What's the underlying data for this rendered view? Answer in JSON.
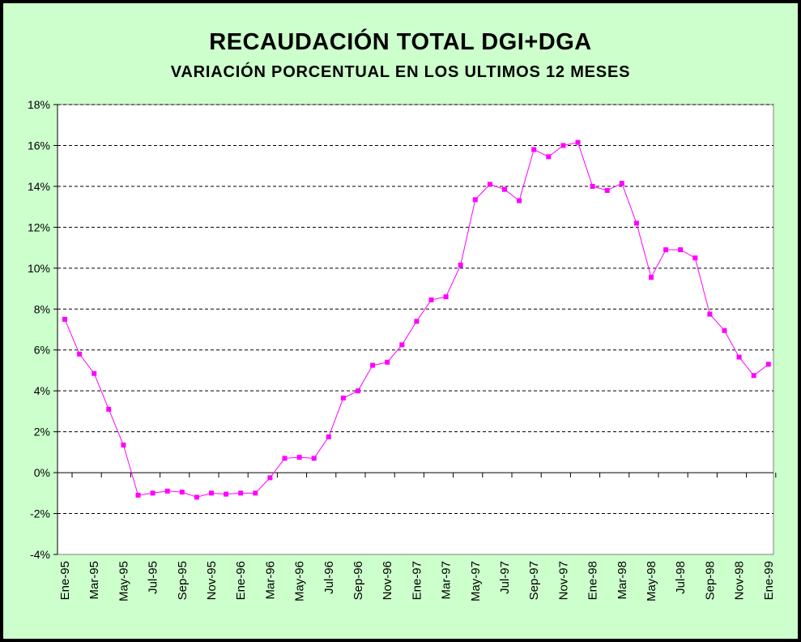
{
  "title": "RECAUDACIÓN TOTAL DGI+DGA",
  "subtitle": "VARIACIÓN PORCENTUAL EN LOS ULTIMOS 12 MESES",
  "colors": {
    "background": "#ccffcc",
    "plot_area": "#ffffff",
    "series": "#ff00ff",
    "grid": "#000000"
  },
  "chart_data": {
    "type": "line",
    "title": "RECAUDACIÓN TOTAL DGI+DGA",
    "subtitle": "VARIACIÓN PORCENTUAL EN LOS ULTIMOS 12 MESES",
    "xlabel": "",
    "ylabel": "",
    "ylim": [
      -4,
      18
    ],
    "yticks": [
      -4,
      -2,
      0,
      2,
      4,
      6,
      8,
      10,
      12,
      14,
      16,
      18
    ],
    "ytick_labels": [
      "-4%",
      "-2%",
      "0%",
      "2%",
      "4%",
      "6%",
      "8%",
      "10%",
      "12%",
      "14%",
      "16%",
      "18%"
    ],
    "grid": "horizontal dashed",
    "marker": "square",
    "x_tick_labels": [
      "Ene-95",
      "Mar-95",
      "May-95",
      "Jul-95",
      "Sep-95",
      "Nov-95",
      "Ene-96",
      "Mar-96",
      "May-96",
      "Jul-96",
      "Sep-96",
      "Nov-96",
      "Ene-97",
      "Mar-97",
      "May-97",
      "Jul-97",
      "Sep-97",
      "Nov-97",
      "Ene-98",
      "Mar-98",
      "May-98",
      "Jul-98",
      "Sep-98",
      "Nov-98",
      "Ene-99"
    ],
    "categories": [
      "Ene-95",
      "Feb-95",
      "Mar-95",
      "Abr-95",
      "May-95",
      "Jun-95",
      "Jul-95",
      "Ago-95",
      "Sep-95",
      "Oct-95",
      "Nov-95",
      "Dic-95",
      "Ene-96",
      "Feb-96",
      "Mar-96",
      "Abr-96",
      "May-96",
      "Jun-96",
      "Jul-96",
      "Ago-96",
      "Sep-96",
      "Oct-96",
      "Nov-96",
      "Dic-96",
      "Ene-97",
      "Feb-97",
      "Mar-97",
      "Abr-97",
      "May-97",
      "Jun-97",
      "Jul-97",
      "Ago-97",
      "Sep-97",
      "Oct-97",
      "Nov-97",
      "Dic-97",
      "Ene-98",
      "Feb-98",
      "Mar-98",
      "Abr-98",
      "May-98",
      "Jun-98",
      "Jul-98",
      "Ago-98",
      "Sep-98",
      "Oct-98",
      "Nov-98",
      "Dic-98",
      "Ene-99"
    ],
    "values": [
      7.5,
      5.8,
      4.85,
      3.1,
      1.35,
      -1.1,
      -1.0,
      -0.9,
      -0.95,
      -1.2,
      -1.0,
      -1.05,
      -1.0,
      -1.0,
      -0.25,
      0.7,
      0.75,
      0.7,
      1.75,
      3.65,
      4.0,
      5.25,
      5.4,
      6.25,
      7.4,
      8.45,
      8.6,
      10.15,
      13.35,
      14.1,
      13.85,
      13.3,
      15.8,
      15.45,
      16.0,
      16.15,
      14.0,
      13.8,
      14.15,
      12.2,
      9.55,
      10.9,
      10.9,
      10.5,
      7.75,
      6.95,
      5.65,
      4.75,
      5.3
    ]
  }
}
